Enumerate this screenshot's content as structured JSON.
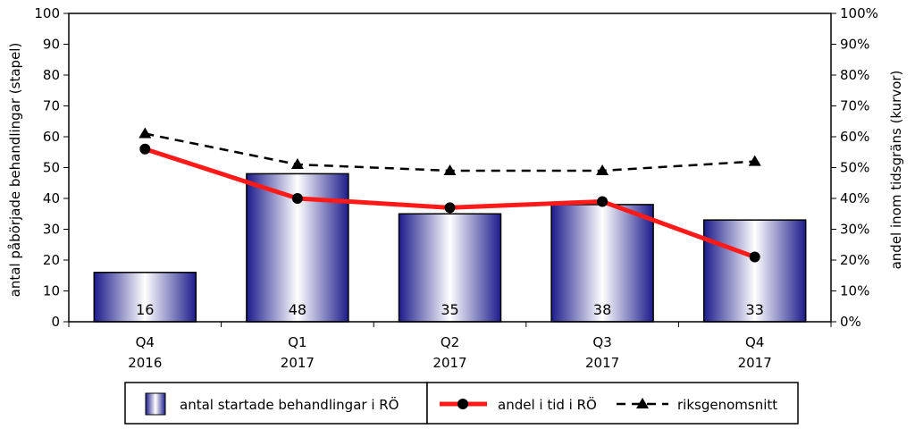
{
  "chart_data": {
    "type": "bar",
    "categories": [
      {
        "line1": "Q4",
        "line2": "2016"
      },
      {
        "line1": "Q1",
        "line2": "2017"
      },
      {
        "line1": "Q2",
        "line2": "2017"
      },
      {
        "line1": "Q3",
        "line2": "2017"
      },
      {
        "line1": "Q4",
        "line2": "2017"
      }
    ],
    "bars": {
      "name": "antal startade behandlingar i RÖ",
      "values": [
        16,
        48,
        35,
        38,
        33
      ],
      "data_labels": [
        "16",
        "48",
        "35",
        "38",
        "33"
      ],
      "colors": {
        "edge": "#1c1c8c",
        "center": "#ffffff",
        "outline": "#000000"
      }
    },
    "lines": [
      {
        "name": "andel i tid i RÖ",
        "values": [
          56,
          40,
          37,
          39,
          21
        ],
        "color": "#ff1a1a",
        "marker": "circle",
        "style": "solid"
      },
      {
        "name": "riksgenomsnitt",
        "values": [
          61,
          51,
          49,
          49,
          52
        ],
        "color": "#000000",
        "marker": "triangle",
        "style": "dashed"
      }
    ],
    "left_axis": {
      "label": "antal påbörjade behandlingar (stapel)",
      "min": 0,
      "max": 100,
      "step": 10,
      "ticks": [
        "0",
        "10",
        "20",
        "30",
        "40",
        "50",
        "60",
        "70",
        "80",
        "90",
        "100"
      ]
    },
    "right_axis": {
      "label": "andel inom tidsgräns (kurvor)",
      "min": 0,
      "max": 100,
      "step": 10,
      "ticks": [
        "0%",
        "10%",
        "20%",
        "30%",
        "40%",
        "50%",
        "60%",
        "70%",
        "80%",
        "90%",
        "100%"
      ]
    },
    "grid": false,
    "legend": {
      "placement": "bottom",
      "entries": [
        "antal startade behandlingar i RÖ",
        "andel i tid i RÖ",
        "riksgenomsnitt"
      ]
    }
  }
}
